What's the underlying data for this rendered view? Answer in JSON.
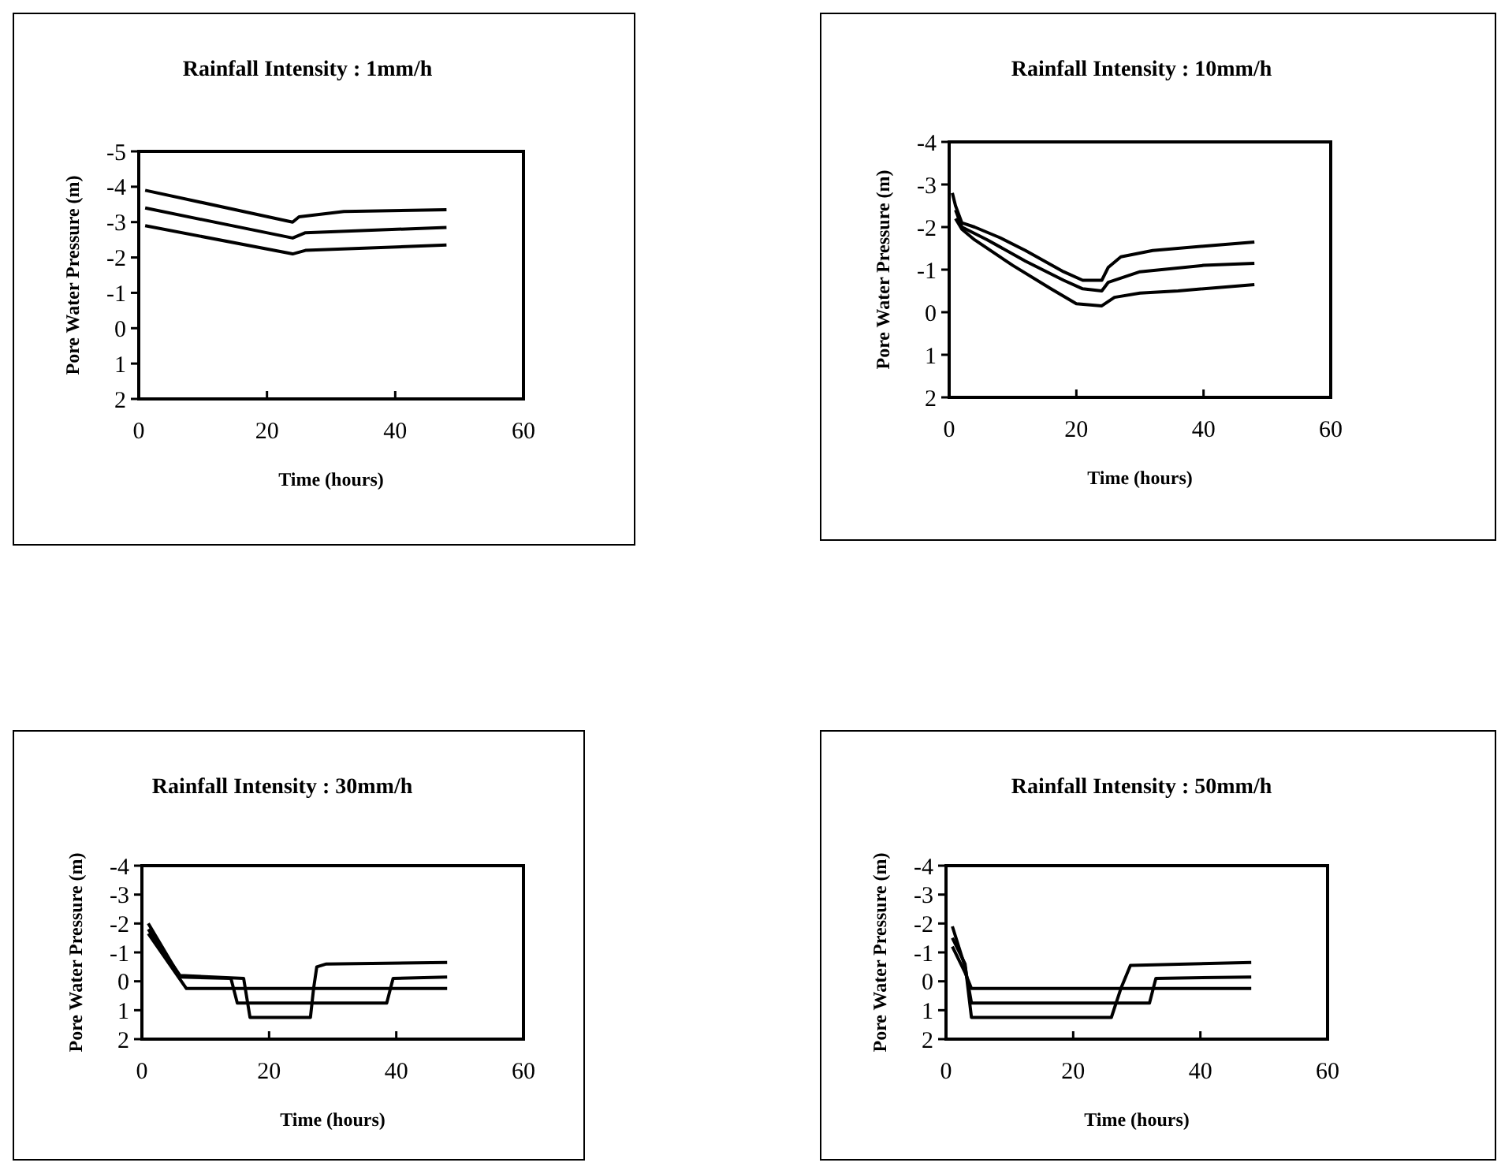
{
  "chart_data": [
    {
      "type": "line",
      "title": "Rainfall Intensity : 1mm/h",
      "xlabel": "Time (hours)",
      "ylabel": "Pore Water Pressure (m)",
      "xlim": [
        0,
        60
      ],
      "xticks": [
        0,
        20,
        40,
        60
      ],
      "ylim": [
        2,
        -5
      ],
      "yticks": [
        2,
        1,
        0,
        -1,
        -2,
        -3,
        -4,
        -5
      ],
      "series": [
        {
          "color": "#000000",
          "x": [
            1,
            24,
            25,
            32,
            48
          ],
          "values": [
            -3.9,
            -3.0,
            -3.15,
            -3.3,
            -3.35
          ]
        },
        {
          "color": "#000000",
          "x": [
            1,
            24,
            26,
            48
          ],
          "values": [
            -3.4,
            -2.55,
            -2.7,
            -2.85
          ]
        },
        {
          "color": "#000000",
          "x": [
            1,
            24,
            26,
            48
          ],
          "values": [
            -2.9,
            -2.1,
            -2.2,
            -2.35
          ]
        }
      ]
    },
    {
      "type": "line",
      "title": "Rainfall Intensity : 10mm/h",
      "xlabel": "Time (hours)",
      "ylabel": "Pore Water Pressure (m)",
      "xlim": [
        0,
        60
      ],
      "xticks": [
        0,
        20,
        40,
        60
      ],
      "ylim": [
        2,
        -4
      ],
      "yticks": [
        2,
        1,
        0,
        -1,
        -2,
        -3,
        -4
      ],
      "series": [
        {
          "color": "#000000",
          "x": [
            0.5,
            1,
            2,
            4,
            8,
            12,
            18,
            21,
            24,
            25,
            27,
            32,
            40,
            48
          ],
          "values": [
            -2.8,
            -2.5,
            -2.1,
            -2.0,
            -1.75,
            -1.45,
            -0.95,
            -0.75,
            -0.75,
            -1.05,
            -1.3,
            -1.45,
            -1.55,
            -1.65
          ]
        },
        {
          "color": "#000000",
          "x": [
            1,
            2,
            6,
            12,
            18,
            21,
            24,
            25,
            30,
            40,
            48
          ],
          "values": [
            -2.4,
            -2.0,
            -1.7,
            -1.2,
            -0.75,
            -0.55,
            -0.5,
            -0.7,
            -0.95,
            -1.1,
            -1.15
          ]
        },
        {
          "color": "#000000",
          "x": [
            1,
            2,
            4,
            10,
            16,
            20,
            24,
            26,
            30,
            36,
            48
          ],
          "values": [
            -2.2,
            -1.95,
            -1.7,
            -1.1,
            -0.55,
            -0.2,
            -0.15,
            -0.35,
            -0.45,
            -0.5,
            -0.65
          ]
        }
      ]
    },
    {
      "type": "line",
      "title": "Rainfall Intensity : 30mm/h",
      "xlabel": "Time (hours)",
      "ylabel": "Pore Water Pressure (m)",
      "xlim": [
        0,
        60
      ],
      "xticks": [
        0,
        20,
        40,
        60
      ],
      "ylim": [
        2,
        -4
      ],
      "yticks": [
        2,
        1,
        0,
        -1,
        -2,
        -3,
        -4
      ],
      "series": [
        {
          "color": "#000000",
          "x": [
            1,
            6,
            16,
            17,
            26.5,
            27,
            27.5,
            29,
            48
          ],
          "values": [
            -1.8,
            -0.2,
            -0.1,
            1.25,
            1.25,
            0.25,
            -0.5,
            -0.6,
            -0.65
          ]
        },
        {
          "color": "#000000",
          "x": [
            1,
            6,
            14,
            15,
            38.5,
            39.5,
            48
          ],
          "values": [
            -2.0,
            -0.15,
            -0.1,
            0.75,
            0.75,
            -0.1,
            -0.15
          ]
        },
        {
          "color": "#000000",
          "x": [
            1,
            7,
            48
          ],
          "values": [
            -1.65,
            0.25,
            0.25
          ]
        }
      ]
    },
    {
      "type": "line",
      "title": "Rainfall Intensity : 50mm/h",
      "xlabel": "Time (hours)",
      "ylabel": "Pore Water Pressure (m)",
      "xlim": [
        0,
        60
      ],
      "xticks": [
        0,
        20,
        40,
        60
      ],
      "ylim": [
        2,
        -4
      ],
      "yticks": [
        2,
        1,
        0,
        -1,
        -2,
        -3,
        -4
      ],
      "series": [
        {
          "color": "#000000",
          "x": [
            1,
            3,
            4,
            26,
            27.5,
            29,
            48
          ],
          "values": [
            -1.5,
            -0.6,
            1.25,
            1.25,
            0.25,
            -0.55,
            -0.65
          ]
        },
        {
          "color": "#000000",
          "x": [
            1,
            3,
            4,
            32,
            33,
            48
          ],
          "values": [
            -1.9,
            -0.5,
            0.75,
            0.75,
            -0.1,
            -0.15
          ]
        },
        {
          "color": "#000000",
          "x": [
            1,
            3,
            4,
            48
          ],
          "values": [
            -1.2,
            -0.3,
            0.25,
            0.25
          ]
        }
      ]
    }
  ]
}
